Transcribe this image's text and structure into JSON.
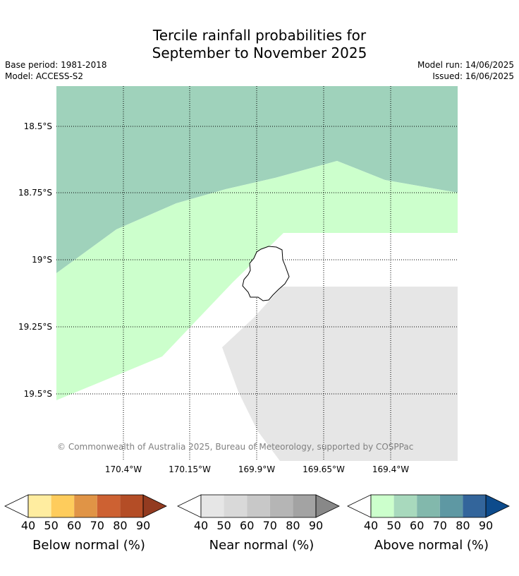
{
  "title": {
    "line1": "Tercile rainfall probabilities for",
    "line2": "September to November 2025"
  },
  "info": {
    "base_period": "Base period: 1981-2018",
    "model": "Model: ACCESS-S2",
    "model_run": "Model run: 14/06/2025",
    "issued": "Issued: 16/06/2025"
  },
  "map": {
    "lat_labels": [
      "18.5°S",
      "18.75°S",
      "19°S",
      "19.25°S",
      "19.5°S"
    ],
    "lon_labels": [
      "170.4°W",
      "170.15°W",
      "169.9°W",
      "169.65°W",
      "169.4°W"
    ],
    "copyright": "© Commonwealth of Australia 2025, Bureau of Meteorology, supported by COSPPac",
    "region_colors": {
      "above_50": "#9fd2bb",
      "above_40": "#ccffcc",
      "near_40": "#e6e6e6",
      "no_signal": "#ffffff"
    }
  },
  "legends": [
    {
      "caption": "Below normal (%)",
      "ticks": [
        "40",
        "50",
        "60",
        "70",
        "80",
        "90"
      ],
      "colors": [
        "#ffffff",
        "#ffeda0",
        "#fecc5c",
        "#e09446",
        "#cd6132",
        "#b44d26",
        "#933b20"
      ]
    },
    {
      "caption": "Near normal (%)",
      "ticks": [
        "40",
        "50",
        "60",
        "70",
        "80",
        "90"
      ],
      "colors": [
        "#ffffff",
        "#e6e6e6",
        "#d9d9d9",
        "#c8c8c8",
        "#b5b5b5",
        "#a3a3a3",
        "#888888"
      ]
    },
    {
      "caption": "Above normal (%)",
      "ticks": [
        "40",
        "50",
        "60",
        "70",
        "80",
        "90"
      ],
      "colors": [
        "#ffffff",
        "#ccffcc",
        "#a8d9bd",
        "#82b8ac",
        "#5e98a3",
        "#33659b",
        "#0d4b8c"
      ]
    }
  ]
}
